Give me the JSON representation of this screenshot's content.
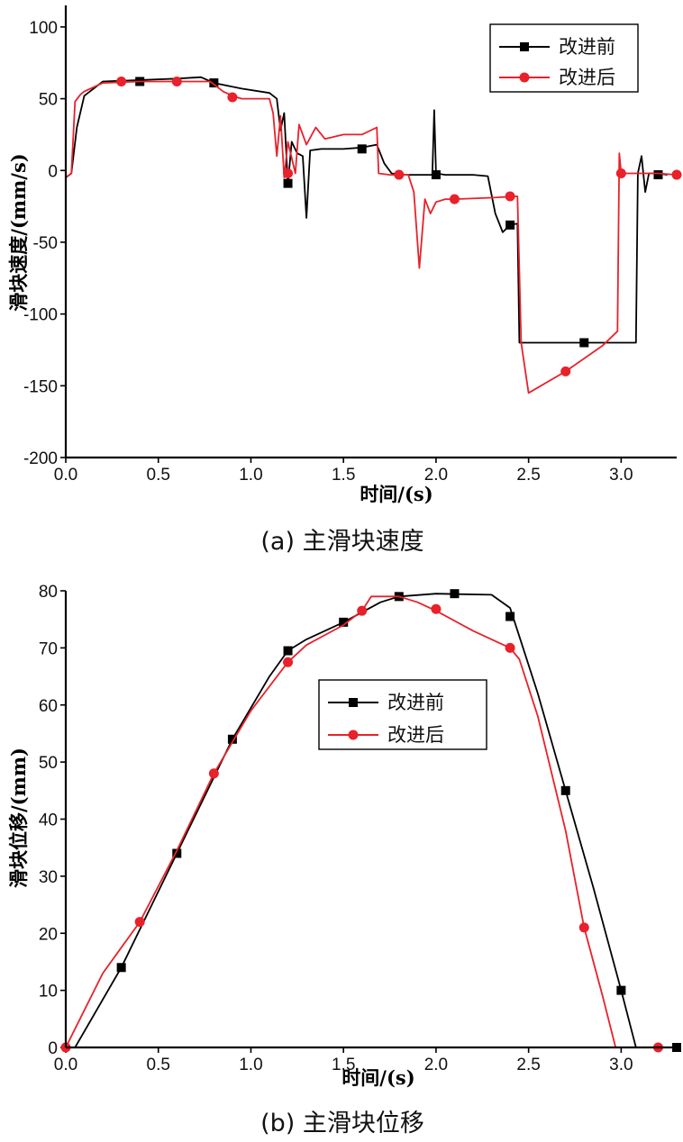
{
  "colors": {
    "before": "#000000",
    "after": "#e8212a"
  },
  "legend": {
    "before": "改进前",
    "after": "改进后"
  },
  "chart_data": [
    {
      "type": "line",
      "caption": "(a) 主滑块速度",
      "xlabel": "时间/(s)",
      "ylabel": "滑块速度/(mm/s)",
      "xlim": [
        0,
        3.3
      ],
      "ylim": [
        -200,
        115
      ],
      "xticks": [
        "0.0",
        "0.5",
        "1.0",
        "1.5",
        "2.0",
        "2.5",
        "3.0"
      ],
      "yticks": [
        "100",
        "50",
        "0",
        "-50",
        "-100",
        "-150",
        "-200"
      ],
      "legend_position": "top-right",
      "series": [
        {
          "name": "改进前",
          "color": "#000000",
          "marker": "square",
          "points": [
            [
              0,
              -5
            ],
            [
              0.03,
              -2
            ],
            [
              0.06,
              30
            ],
            [
              0.1,
              52
            ],
            [
              0.2,
              62
            ],
            [
              0.4,
              63
            ],
            [
              0.6,
              64
            ],
            [
              0.73,
              65
            ],
            [
              0.8,
              61
            ],
            [
              0.95,
              57
            ],
            [
              1.1,
              54
            ],
            [
              1.14,
              50
            ],
            [
              1.16,
              28
            ],
            [
              1.18,
              40
            ],
            [
              1.2,
              -10
            ],
            [
              1.22,
              20
            ],
            [
              1.25,
              12
            ],
            [
              1.28,
              10
            ],
            [
              1.3,
              -33
            ],
            [
              1.32,
              14
            ],
            [
              1.38,
              15
            ],
            [
              1.5,
              15
            ],
            [
              1.6,
              16
            ],
            [
              1.68,
              18
            ],
            [
              1.72,
              5
            ],
            [
              1.76,
              -2
            ],
            [
              1.82,
              -3
            ],
            [
              1.97,
              -3
            ],
            [
              1.98,
              -3
            ],
            [
              1.99,
              42
            ],
            [
              2.0,
              -2
            ],
            [
              2.05,
              -3
            ],
            [
              2.2,
              -3
            ],
            [
              2.28,
              -4
            ],
            [
              2.32,
              -30
            ],
            [
              2.36,
              -43
            ],
            [
              2.4,
              -38
            ],
            [
              2.44,
              -37
            ],
            [
              2.45,
              -120
            ],
            [
              2.6,
              -120
            ],
            [
              2.8,
              -120
            ],
            [
              3.0,
              -120
            ],
            [
              3.08,
              -120
            ],
            [
              3.09,
              -2
            ],
            [
              3.11,
              10
            ],
            [
              3.13,
              -15
            ],
            [
              3.15,
              -2
            ],
            [
              3.2,
              -2
            ],
            [
              3.25,
              -3
            ]
          ],
          "marker_points": [
            [
              0.4,
              62
            ],
            [
              0.8,
              61
            ],
            [
              1.2,
              -9
            ],
            [
              1.6,
              15
            ],
            [
              2.0,
              -3
            ],
            [
              2.4,
              -38
            ],
            [
              2.8,
              -120
            ],
            [
              3.2,
              -3
            ]
          ]
        },
        {
          "name": "改进后",
          "color": "#e8212a",
          "marker": "circle",
          "points": [
            [
              0,
              -5
            ],
            [
              0.03,
              -2
            ],
            [
              0.05,
              48
            ],
            [
              0.08,
              53
            ],
            [
              0.1,
              55
            ],
            [
              0.2,
              61
            ],
            [
              0.4,
              62
            ],
            [
              0.6,
              62
            ],
            [
              0.78,
              62
            ],
            [
              0.85,
              55
            ],
            [
              0.9,
              52
            ],
            [
              0.95,
              50
            ],
            [
              1.1,
              50
            ],
            [
              1.12,
              40
            ],
            [
              1.14,
              10
            ],
            [
              1.16,
              38
            ],
            [
              1.18,
              -5
            ],
            [
              1.2,
              20
            ],
            [
              1.24,
              -2
            ],
            [
              1.26,
              32
            ],
            [
              1.3,
              18
            ],
            [
              1.35,
              30
            ],
            [
              1.4,
              22
            ],
            [
              1.5,
              25
            ],
            [
              1.6,
              25
            ],
            [
              1.68,
              30
            ],
            [
              1.69,
              -2
            ],
            [
              1.75,
              -3
            ],
            [
              1.85,
              -3
            ],
            [
              1.88,
              -15
            ],
            [
              1.91,
              -68
            ],
            [
              1.94,
              -20
            ],
            [
              1.97,
              -30
            ],
            [
              2.0,
              -22
            ],
            [
              2.05,
              -20
            ],
            [
              2.1,
              -20
            ],
            [
              2.3,
              -19
            ],
            [
              2.44,
              -18
            ],
            [
              2.46,
              -120
            ],
            [
              2.5,
              -155
            ],
            [
              2.7,
              -140
            ],
            [
              2.9,
              -122
            ],
            [
              2.98,
              -112
            ],
            [
              2.99,
              12
            ],
            [
              3.0,
              -2
            ],
            [
              3.2,
              -2
            ],
            [
              3.3,
              -3
            ]
          ],
          "marker_points": [
            [
              0.3,
              62
            ],
            [
              0.6,
              62
            ],
            [
              0.9,
              51
            ],
            [
              1.2,
              -2
            ],
            [
              1.8,
              -3
            ],
            [
              2.1,
              -20
            ],
            [
              2.4,
              -18
            ],
            [
              2.7,
              -140
            ],
            [
              3.0,
              -2
            ],
            [
              3.3,
              -3
            ]
          ]
        }
      ]
    },
    {
      "type": "line",
      "caption": "(b) 主滑块位移",
      "xlabel": "时间/(s)",
      "ylabel": "滑块位移/(mm)",
      "xlim": [
        0,
        3.3
      ],
      "ylim": [
        0,
        80
      ],
      "xticks": [
        "0.0",
        "0.5",
        "1.0",
        "1.5",
        "2.0",
        "2.5",
        "3.0"
      ],
      "yticks": [
        "80",
        "70",
        "60",
        "50",
        "40",
        "30",
        "20",
        "10",
        "0"
      ],
      "legend_position": "center",
      "series": [
        {
          "name": "改进前",
          "color": "#000000",
          "marker": "square",
          "points": [
            [
              0.05,
              0
            ],
            [
              0.3,
              14
            ],
            [
              0.6,
              34
            ],
            [
              0.9,
              54
            ],
            [
              1.1,
              65
            ],
            [
              1.2,
              69.5
            ],
            [
              1.3,
              71.5
            ],
            [
              1.5,
              74.5
            ],
            [
              1.7,
              78
            ],
            [
              1.8,
              79
            ],
            [
              2.0,
              79.5
            ],
            [
              2.3,
              79.3
            ],
            [
              2.4,
              77
            ],
            [
              2.45,
              72
            ],
            [
              2.55,
              62
            ],
            [
              2.7,
              45
            ],
            [
              2.85,
              28
            ],
            [
              3.0,
              10
            ],
            [
              3.08,
              0
            ],
            [
              3.3,
              0
            ]
          ],
          "marker_points": [
            [
              0.3,
              14
            ],
            [
              0.6,
              34
            ],
            [
              0.9,
              54
            ],
            [
              1.2,
              69.5
            ],
            [
              1.5,
              74.5
            ],
            [
              1.8,
              79
            ],
            [
              2.1,
              79.5
            ],
            [
              2.4,
              75.5
            ],
            [
              2.7,
              45
            ],
            [
              3.0,
              10
            ],
            [
              3.3,
              0
            ]
          ]
        },
        {
          "name": "改进后",
          "color": "#e8212a",
          "marker": "circle",
          "points": [
            [
              0,
              0
            ],
            [
              0.2,
              13
            ],
            [
              0.4,
              22
            ],
            [
              0.6,
              34.5
            ],
            [
              0.8,
              48
            ],
            [
              1.0,
              59
            ],
            [
              1.2,
              67.5
            ],
            [
              1.3,
              70.5
            ],
            [
              1.5,
              74
            ],
            [
              1.6,
              76.5
            ],
            [
              1.65,
              79
            ],
            [
              1.8,
              79
            ],
            [
              1.9,
              78
            ],
            [
              2.0,
              76.5
            ],
            [
              2.2,
              73
            ],
            [
              2.4,
              70
            ],
            [
              2.45,
              68
            ],
            [
              2.55,
              58
            ],
            [
              2.7,
              38
            ],
            [
              2.8,
              21
            ],
            [
              2.9,
              9
            ],
            [
              2.97,
              0
            ],
            [
              3.2,
              0
            ]
          ],
          "marker_points": [
            [
              0,
              0
            ],
            [
              0.4,
              22
            ],
            [
              0.8,
              48
            ],
            [
              1.2,
              67.5
            ],
            [
              1.6,
              76.5
            ],
            [
              2.0,
              76.8
            ],
            [
              2.4,
              70
            ],
            [
              2.8,
              21
            ],
            [
              3.2,
              0
            ]
          ]
        }
      ]
    }
  ]
}
